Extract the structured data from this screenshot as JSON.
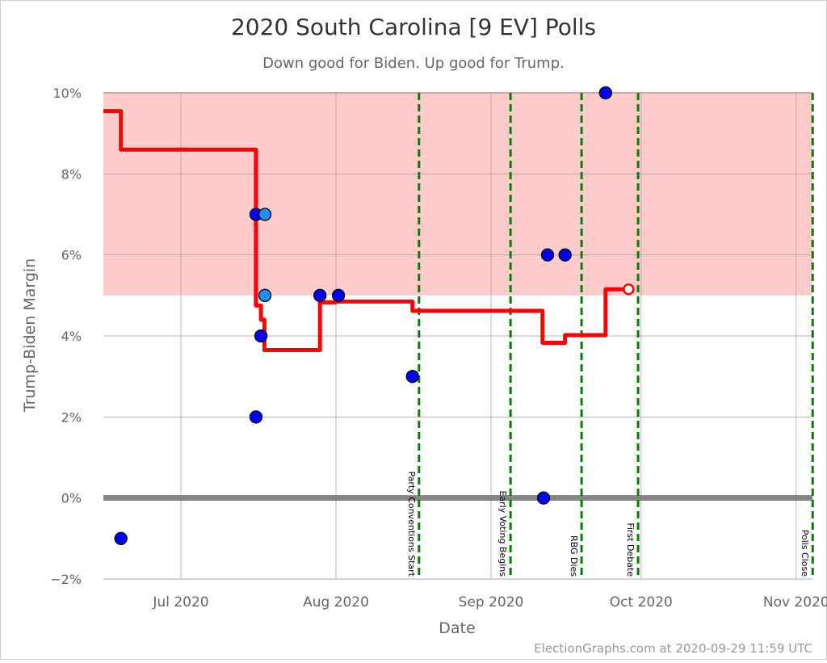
{
  "chart_data": {
    "type": "line",
    "title": "2020 South Carolina [9 EV] Polls",
    "subtitle": "Down good for Biden. Up good for Trump.",
    "xlabel": "Date",
    "ylabel": "Trump-Biden Margin",
    "credit": "ElectionGraphs.com at 2020-09-29 11:59 UTC",
    "xlim": [
      "2020-06-15",
      "2020-11-04"
    ],
    "ylim": [
      -2,
      10
    ],
    "grid": true,
    "y_ticks": [
      {
        "value": -2,
        "label": "−2%"
      },
      {
        "value": 0,
        "label": "0%"
      },
      {
        "value": 2,
        "label": "2%"
      },
      {
        "value": 4,
        "label": "4%"
      },
      {
        "value": 6,
        "label": "6%"
      },
      {
        "value": 8,
        "label": "8%"
      },
      {
        "value": 10,
        "label": "10%"
      }
    ],
    "x_ticks": [
      {
        "date": "2020-07-01",
        "label": "Jul 2020"
      },
      {
        "date": "2020-08-01",
        "label": "Aug 2020"
      },
      {
        "date": "2020-09-01",
        "label": "Sep 2020"
      },
      {
        "date": "2020-10-01",
        "label": "Oct 2020"
      },
      {
        "date": "2020-11-01",
        "label": "Nov 2020"
      }
    ],
    "shaded_band": {
      "from": 5,
      "to": 10,
      "color": "#ffcccc",
      "edge_color": "#ff8080"
    },
    "colors": {
      "average": "#ff0000",
      "poll": "#0000ff",
      "poll_alt": "#1e90ff",
      "event": "#008000",
      "zero_line": "#777777"
    },
    "average_series": [
      {
        "date": "2020-06-15",
        "value": 9.55
      },
      {
        "date": "2020-06-19",
        "value": 8.6
      },
      {
        "date": "2020-07-16",
        "value": 4.75
      },
      {
        "date": "2020-07-17",
        "value": 4.4
      },
      {
        "date": "2020-07-17.7",
        "value": 3.65
      },
      {
        "date": "2020-07-28.8",
        "value": 4.83
      },
      {
        "date": "2020-08-01",
        "value": 4.85
      },
      {
        "date": "2020-08-16.3",
        "value": 4.62
      },
      {
        "date": "2020-09-11.3",
        "value": 3.83
      },
      {
        "date": "2020-09-15.8",
        "value": 4.02
      },
      {
        "date": "2020-09-23.9",
        "value": 5.15
      },
      {
        "date": "2020-09-28.5",
        "value": 5.15
      }
    ],
    "polls": [
      {
        "date": "2020-06-19",
        "value": -1,
        "kind": "poll"
      },
      {
        "date": "2020-07-16",
        "value": 7,
        "kind": "poll"
      },
      {
        "date": "2020-07-16",
        "value": 2,
        "kind": "poll"
      },
      {
        "date": "2020-07-17",
        "value": 4,
        "kind": "poll"
      },
      {
        "date": "2020-07-17.8",
        "value": 7,
        "kind": "poll_alt"
      },
      {
        "date": "2020-07-17.8",
        "value": 5,
        "kind": "poll_alt"
      },
      {
        "date": "2020-07-28.8",
        "value": 5,
        "kind": "poll"
      },
      {
        "date": "2020-08-01.5",
        "value": 5,
        "kind": "poll"
      },
      {
        "date": "2020-08-16.3",
        "value": 3,
        "kind": "poll"
      },
      {
        "date": "2020-09-11.5",
        "value": 0,
        "kind": "poll"
      },
      {
        "date": "2020-09-12.3",
        "value": 6,
        "kind": "poll"
      },
      {
        "date": "2020-09-15.8",
        "value": 6,
        "kind": "poll"
      },
      {
        "date": "2020-09-23.9",
        "value": 10,
        "kind": "poll"
      }
    ],
    "events": [
      {
        "date": "2020-08-17.6",
        "label": "Party Conventions Start"
      },
      {
        "date": "2020-09-04.9",
        "label": "Early Voting Begins"
      },
      {
        "date": "2020-09-19.1",
        "label": "RBG Dies"
      },
      {
        "date": "2020-09-30.4",
        "label": "First Debate"
      },
      {
        "date": "2020-11-04.3",
        "label": "Polls Close"
      }
    ]
  }
}
